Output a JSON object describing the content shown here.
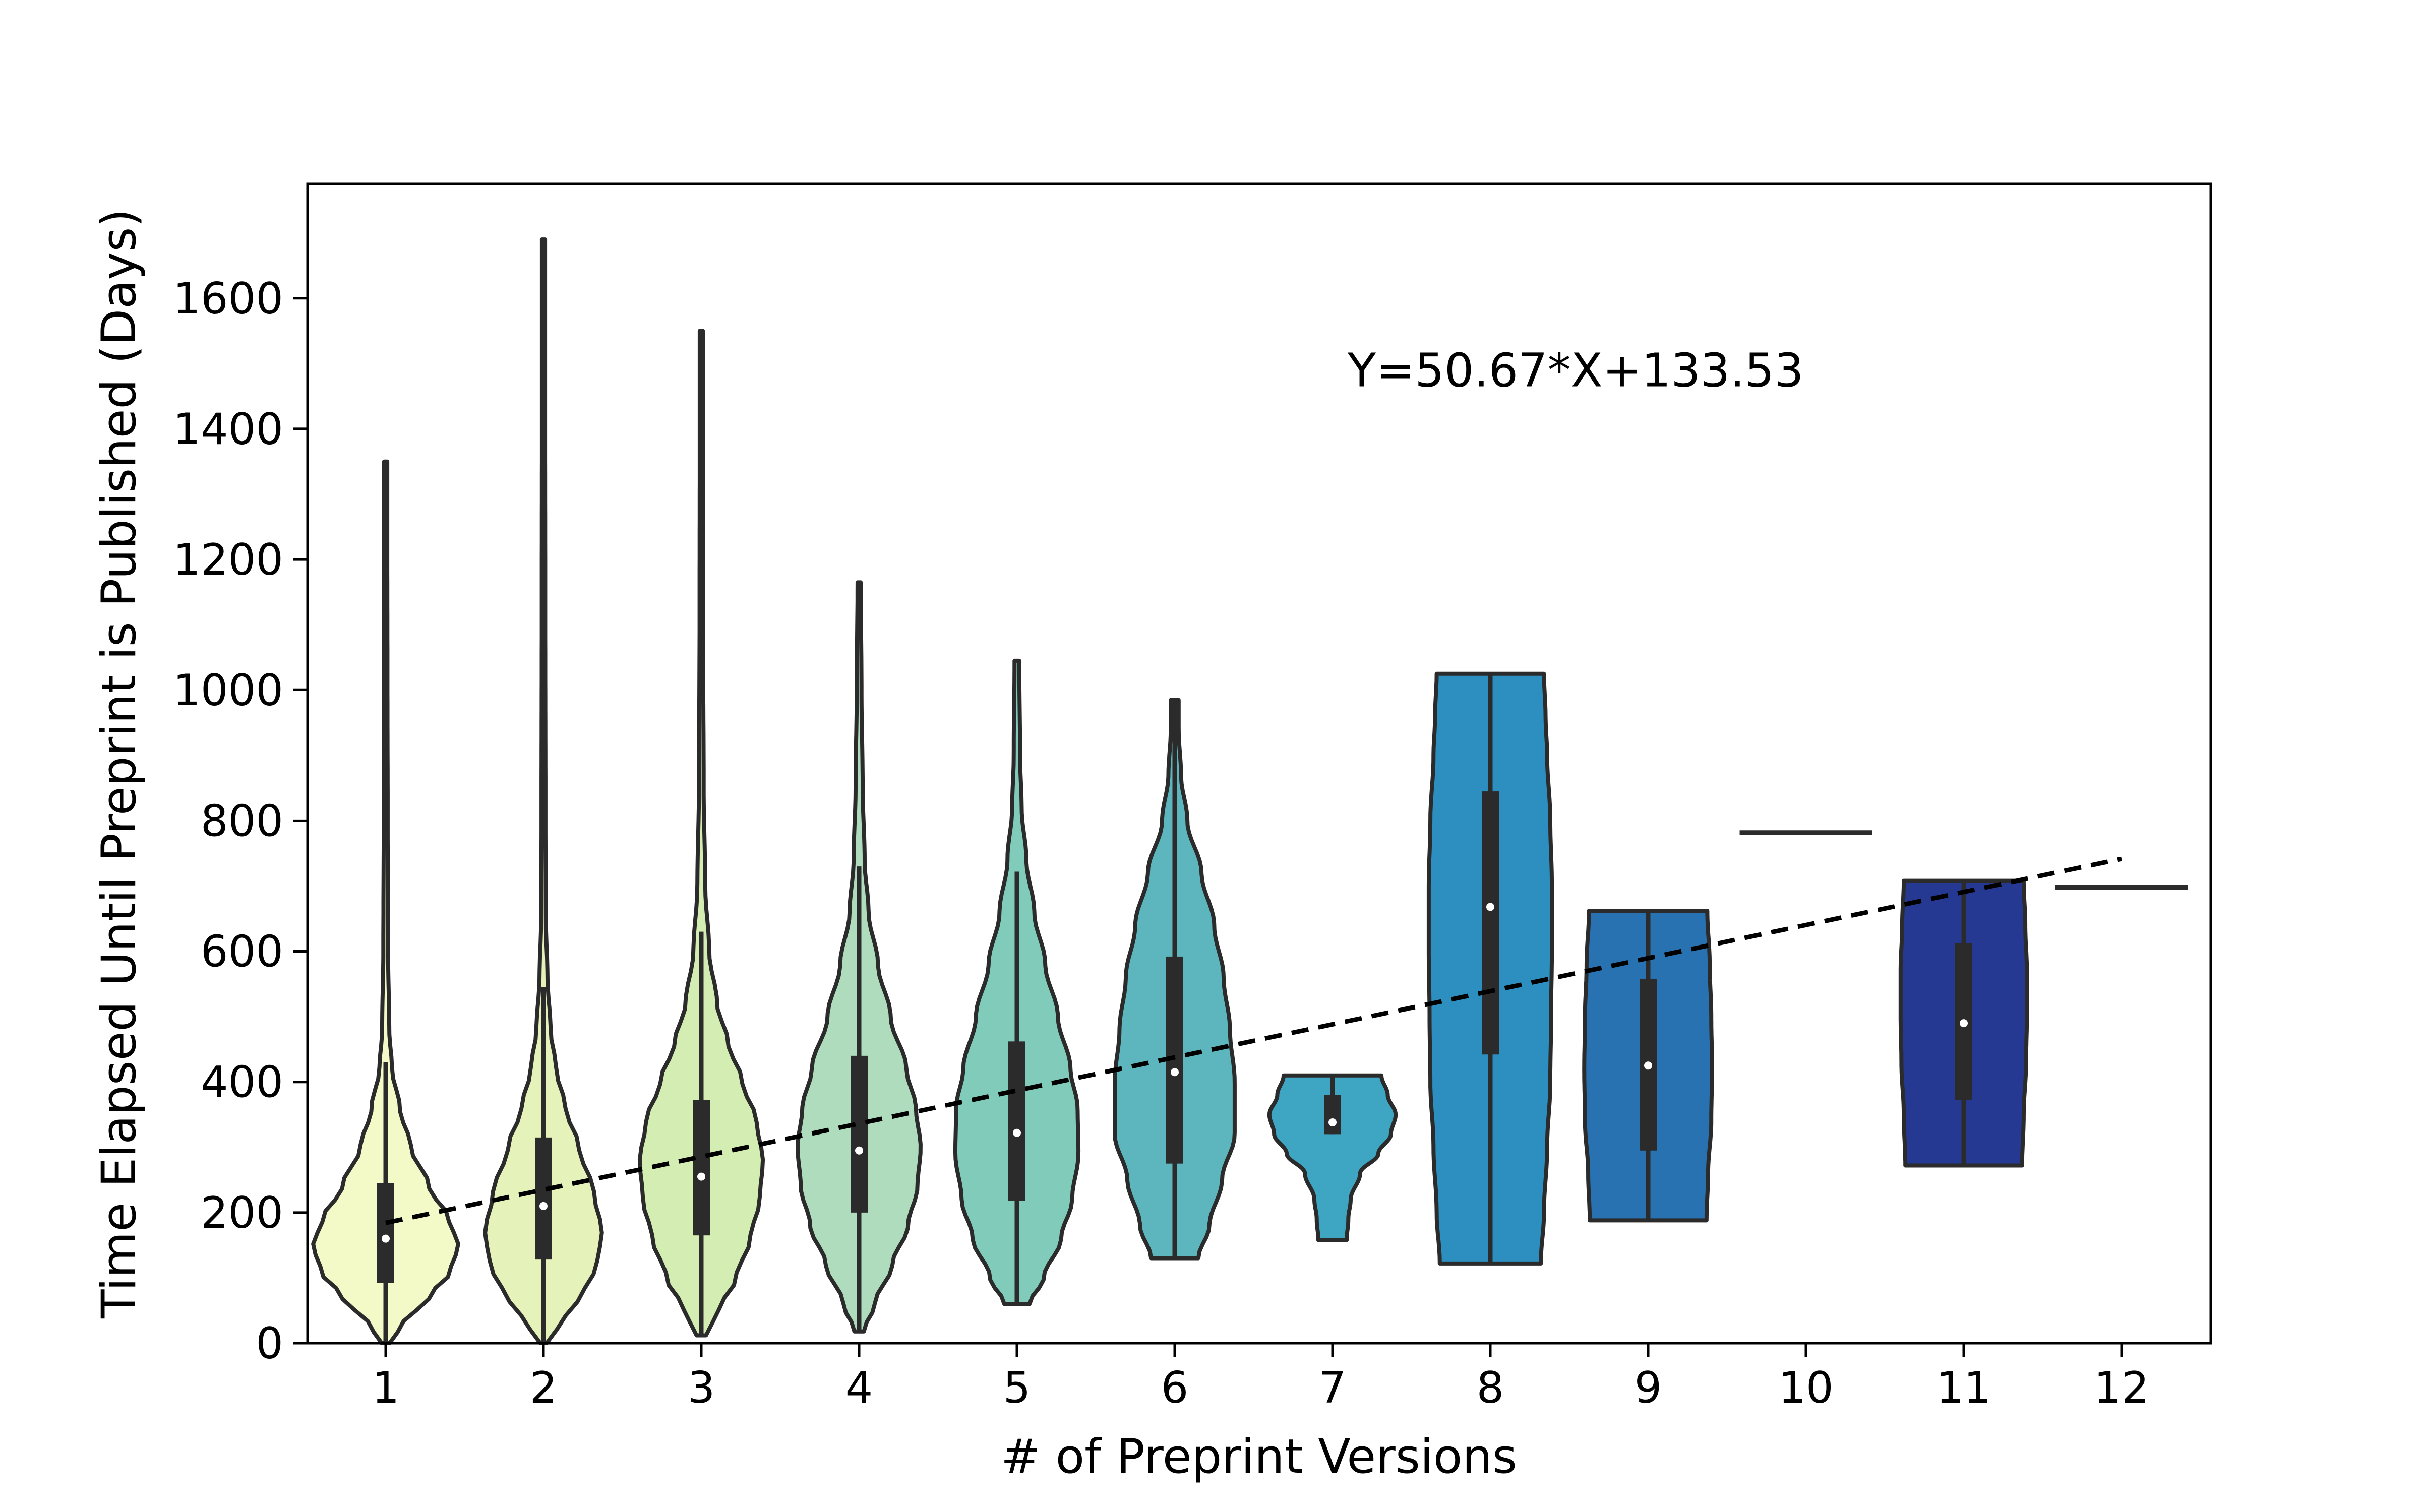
{
  "chart_data": {
    "type": "violin",
    "title": "",
    "xlabel": "# of Preprint Versions",
    "ylabel": "Time Elapsed Until Preprint is Published (Days)",
    "ylim": [
      0,
      1775
    ],
    "yticks": [
      0,
      200,
      400,
      600,
      800,
      1000,
      1200,
      1400,
      1600
    ],
    "categories": [
      "1",
      "2",
      "3",
      "4",
      "5",
      "6",
      "7",
      "8",
      "9",
      "10",
      "11",
      "12"
    ],
    "grid": false,
    "legend": "none",
    "palette": [
      "#f4f9c8",
      "#e5f2b9",
      "#d3edb3",
      "#afdcbc",
      "#80cbba",
      "#5db6bd",
      "#3ea5c2",
      "#2c8fc0",
      "#2872b1",
      "#2557a1",
      "#253993",
      "#1d2d82"
    ],
    "violins": [
      {
        "category": "1",
        "min": 0,
        "max": 1350,
        "q1": 92,
        "median": 160,
        "q3": 245,
        "whisker_low": 0,
        "whisker_high": 430,
        "profile": [
          [
            0,
            0.05
          ],
          [
            30,
            0.22
          ],
          [
            70,
            0.55
          ],
          [
            110,
            0.82
          ],
          [
            150,
            0.92
          ],
          [
            190,
            0.8
          ],
          [
            240,
            0.55
          ],
          [
            300,
            0.32
          ],
          [
            360,
            0.18
          ],
          [
            420,
            0.08
          ],
          [
            480,
            0.045
          ],
          [
            600,
            0.03
          ],
          [
            800,
            0.025
          ],
          [
            1000,
            0.022
          ],
          [
            1200,
            0.02
          ],
          [
            1350,
            0.02
          ]
        ]
      },
      {
        "category": "2",
        "min": 0,
        "max": 1690,
        "q1": 128,
        "median": 210,
        "q3": 315,
        "whisker_low": 0,
        "whisker_high": 545,
        "profile": [
          [
            0,
            0.04
          ],
          [
            40,
            0.28
          ],
          [
            80,
            0.52
          ],
          [
            120,
            0.68
          ],
          [
            170,
            0.74
          ],
          [
            230,
            0.64
          ],
          [
            300,
            0.45
          ],
          [
            360,
            0.28
          ],
          [
            420,
            0.16
          ],
          [
            480,
            0.09
          ],
          [
            560,
            0.05
          ],
          [
            650,
            0.03
          ],
          [
            800,
            0.025
          ],
          [
            1100,
            0.022
          ],
          [
            1400,
            0.02
          ],
          [
            1690,
            0.02
          ]
        ]
      },
      {
        "category": "3",
        "min": 12,
        "max": 1550,
        "q1": 165,
        "median": 255,
        "q3": 372,
        "whisker_low": 12,
        "whisker_high": 630,
        "profile": [
          [
            12,
            0.06
          ],
          [
            50,
            0.22
          ],
          [
            100,
            0.44
          ],
          [
            160,
            0.62
          ],
          [
            220,
            0.74
          ],
          [
            280,
            0.78
          ],
          [
            340,
            0.7
          ],
          [
            400,
            0.52
          ],
          [
            460,
            0.34
          ],
          [
            520,
            0.2
          ],
          [
            600,
            0.1
          ],
          [
            700,
            0.05
          ],
          [
            850,
            0.03
          ],
          [
            1100,
            0.022
          ],
          [
            1350,
            0.02
          ],
          [
            1550,
            0.02
          ]
        ]
      },
      {
        "category": "4",
        "min": 18,
        "max": 1165,
        "q1": 200,
        "median": 295,
        "q3": 440,
        "whisker_low": 18,
        "whisker_high": 730,
        "profile": [
          [
            18,
            0.06
          ],
          [
            60,
            0.2
          ],
          [
            120,
            0.42
          ],
          [
            180,
            0.62
          ],
          [
            240,
            0.74
          ],
          [
            300,
            0.78
          ],
          [
            360,
            0.72
          ],
          [
            420,
            0.6
          ],
          [
            500,
            0.4
          ],
          [
            580,
            0.24
          ],
          [
            660,
            0.12
          ],
          [
            740,
            0.07
          ],
          [
            850,
            0.045
          ],
          [
            1000,
            0.03
          ],
          [
            1165,
            0.02
          ]
        ]
      },
      {
        "category": "5",
        "min": 60,
        "max": 1045,
        "q1": 218,
        "median": 322,
        "q3": 462,
        "whisker_low": 60,
        "whisker_high": 722,
        "profile": [
          [
            60,
            0.16
          ],
          [
            100,
            0.34
          ],
          [
            160,
            0.56
          ],
          [
            220,
            0.7
          ],
          [
            290,
            0.78
          ],
          [
            360,
            0.77
          ],
          [
            420,
            0.68
          ],
          [
            500,
            0.52
          ],
          [
            580,
            0.36
          ],
          [
            660,
            0.22
          ],
          [
            740,
            0.12
          ],
          [
            820,
            0.06
          ],
          [
            900,
            0.04
          ],
          [
            1045,
            0.03
          ]
        ]
      },
      {
        "category": "6",
        "min": 130,
        "max": 985,
        "q1": 275,
        "median": 415,
        "q3": 592,
        "whisker_low": 130,
        "whisker_high": 985,
        "profile": [
          [
            130,
            0.3
          ],
          [
            180,
            0.44
          ],
          [
            250,
            0.6
          ],
          [
            320,
            0.76
          ],
          [
            400,
            0.76
          ],
          [
            480,
            0.7
          ],
          [
            560,
            0.62
          ],
          [
            640,
            0.5
          ],
          [
            720,
            0.34
          ],
          [
            800,
            0.16
          ],
          [
            870,
            0.08
          ],
          [
            940,
            0.05
          ],
          [
            985,
            0.05
          ]
        ]
      },
      {
        "category": "7",
        "min": 158,
        "max": 410,
        "q1": 320,
        "median": 338,
        "q3": 380,
        "whisker_low": 320,
        "whisker_high": 410,
        "profile": [
          [
            158,
            0.18
          ],
          [
            190,
            0.2
          ],
          [
            220,
            0.23
          ],
          [
            260,
            0.35
          ],
          [
            290,
            0.58
          ],
          [
            320,
            0.74
          ],
          [
            350,
            0.8
          ],
          [
            380,
            0.7
          ],
          [
            410,
            0.62
          ]
        ]
      },
      {
        "category": "8",
        "min": 122,
        "max": 1025,
        "q1": 442,
        "median": 668,
        "q3": 845,
        "whisker_low": 122,
        "whisker_high": 1025,
        "profile": [
          [
            122,
            0.64
          ],
          [
            200,
            0.68
          ],
          [
            300,
            0.72
          ],
          [
            400,
            0.76
          ],
          [
            500,
            0.77
          ],
          [
            600,
            0.78
          ],
          [
            700,
            0.78
          ],
          [
            800,
            0.76
          ],
          [
            900,
            0.72
          ],
          [
            960,
            0.7
          ],
          [
            1025,
            0.68
          ]
        ]
      },
      {
        "category": "9",
        "min": 188,
        "max": 662,
        "q1": 295,
        "median": 425,
        "q3": 558,
        "whisker_low": 188,
        "whisker_high": 662,
        "profile": [
          [
            188,
            0.74
          ],
          [
            260,
            0.76
          ],
          [
            340,
            0.8
          ],
          [
            420,
            0.81
          ],
          [
            500,
            0.8
          ],
          [
            580,
            0.78
          ],
          [
            662,
            0.75
          ]
        ]
      },
      {
        "category": "10",
        "min": 782,
        "max": 782,
        "median": 782,
        "flat": true,
        "halfwidth": 0.42
      },
      {
        "category": "11",
        "min": 272,
        "max": 708,
        "q1": 372,
        "median": 490,
        "q3": 612,
        "whisker_low": 272,
        "whisker_high": 708,
        "profile": [
          [
            272,
            0.74
          ],
          [
            350,
            0.76
          ],
          [
            430,
            0.79
          ],
          [
            500,
            0.8
          ],
          [
            570,
            0.8
          ],
          [
            640,
            0.78
          ],
          [
            708,
            0.76
          ]
        ]
      },
      {
        "category": "12",
        "min": 698,
        "max": 698,
        "median": 698,
        "flat": true,
        "halfwidth": 0.42
      }
    ],
    "trendline": {
      "slope": 50.67,
      "intercept": 133.53,
      "x_from": 1,
      "x_to": 12,
      "style": "dashed"
    },
    "annotations": [
      {
        "text": "Y=50.67*X+133.53",
        "x": 7.0,
        "y": 1490
      }
    ]
  }
}
